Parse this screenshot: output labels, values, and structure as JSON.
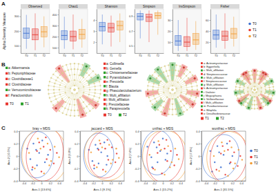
{
  "chart_data": [
    {
      "type": "box",
      "label": "A",
      "ylabel": "Alpha Diversity Measure",
      "categories": [
        "T0",
        "T1",
        "T2"
      ],
      "series": [
        {
          "name": "T0",
          "color": "#3c6fd0"
        },
        {
          "name": "T1",
          "color": "#e8352e"
        },
        {
          "name": "T2",
          "color": "#f39c32"
        }
      ],
      "facets": [
        {
          "title": "Observed",
          "ylim": [
            50,
            350
          ],
          "yticks": [
            100,
            200,
            300
          ],
          "stats": [
            [
              80,
              150,
              185,
              220,
              310
            ],
            [
              70,
              140,
              175,
              215,
              320
            ],
            [
              90,
              160,
              195,
              230,
              300
            ]
          ]
        },
        {
          "title": "Chao1",
          "ylim": [
            50,
            450
          ],
          "yticks": [
            100,
            200,
            300,
            400
          ],
          "stats": [
            [
              90,
              170,
              210,
              255,
              380
            ],
            [
              85,
              160,
              200,
              250,
              400
            ],
            [
              100,
              180,
              220,
              265,
              360
            ]
          ]
        },
        {
          "title": "Shannon",
          "ylim": [
            1,
            5
          ],
          "yticks": [
            2,
            3,
            4
          ],
          "stats": [
            [
              1.8,
              3.0,
              3.4,
              3.8,
              4.5
            ],
            [
              1.6,
              2.9,
              3.3,
              3.7,
              4.4
            ],
            [
              2.0,
              3.1,
              3.5,
              3.9,
              4.6
            ]
          ]
        },
        {
          "title": "Simpson",
          "ylim": [
            0.4,
            1
          ],
          "yticks": [
            0.5,
            0.7,
            0.9
          ],
          "stats": [
            [
              0.6,
              0.85,
              0.9,
              0.94,
              0.98
            ],
            [
              0.55,
              0.83,
              0.89,
              0.93,
              0.98
            ],
            [
              0.65,
              0.87,
              0.91,
              0.95,
              0.98
            ]
          ]
        },
        {
          "title": "InvSimpson",
          "ylim": [
            0,
            40
          ],
          "yticks": [
            10,
            20,
            30
          ],
          "stats": [
            [
              2,
              7,
              11,
              16,
              30
            ],
            [
              2,
              6,
              10,
              15,
              32
            ],
            [
              3,
              8,
              12,
              18,
              29
            ]
          ]
        },
        {
          "title": "Fisher",
          "ylim": [
            0,
            80
          ],
          "yticks": [
            20,
            40,
            60
          ],
          "stats": [
            [
              10,
              25,
              33,
              42,
              70
            ],
            [
              8,
              23,
              31,
              40,
              72
            ],
            [
              12,
              27,
              35,
              45,
              66
            ]
          ]
        }
      ]
    },
    {
      "type": "cladogram",
      "label": "B",
      "panels": [
        {
          "series": [
            {
              "name": "T0",
              "color": "#e8352e"
            },
            {
              "name": "T1",
              "color": "#2ca02c"
            }
          ],
          "clades": [
            {
              "label": "a: Akkermansia",
              "group": 1
            },
            {
              "label": "b: Peptoniphilaceae",
              "group": 0
            },
            {
              "label": "c: Clostridiaceae1",
              "group": 0
            },
            {
              "label": "d: Clostridiaceae",
              "group": 0
            },
            {
              "label": "e: Verrucomicrobiaceae",
              "group": 1
            },
            {
              "label": "f: Paraclostridium",
              "group": 0
            }
          ]
        },
        {
          "series": [
            {
              "name": "T0",
              "color": "#e8352e"
            },
            {
              "name": "T2",
              "color": "#2ca02c"
            }
          ],
          "clades": [
            {
              "label": "a: Collinsella",
              "group": 0
            },
            {
              "label": "b: Gemella",
              "group": 0
            },
            {
              "label": "c: Christensenellaceae",
              "group": 1
            },
            {
              "label": "d: Pyramidobacter",
              "group": 1
            },
            {
              "label": "e: Prevotella",
              "group": 0
            },
            {
              "label": "f: Blautia",
              "group": 1
            },
            {
              "label": "g: Phascolarctobacterium",
              "group": 0
            },
            {
              "label": "h: Multi_affiliation",
              "group": 1
            },
            {
              "label": "i: Multi_affiliation",
              "group": 0
            },
            {
              "label": "j: Prevotellaceae",
              "group": 0
            },
            {
              "label": "k: Paraprevotella",
              "group": 1
            }
          ]
        },
        {
          "series": [
            {
              "name": "T1",
              "color": "#e8352e"
            },
            {
              "name": "T2",
              "color": "#2ca02c"
            }
          ],
          "clades": [
            {
              "label": "a: Actinomycetaceae",
              "group": 0
            },
            {
              "label": "b: Eggerthella",
              "group": 0
            },
            {
              "label": "c: Multi_affiliation",
              "group": 1
            },
            {
              "label": "d: Streptococcaceae",
              "group": 0
            },
            {
              "label": "e: Multi_affiliation",
              "group": 1
            },
            {
              "label": "f: Streptococcaceae",
              "group": 0
            },
            {
              "label": "g: Multi_affiliation",
              "group": 1
            },
            {
              "label": "h: Actinomycetaceae",
              "group": 0
            },
            {
              "label": "i: Dialister",
              "group": 1
            },
            {
              "label": "j: Megasphaera",
              "group": 1
            },
            {
              "label": "k: Veillonellaceae",
              "group": 1
            },
            {
              "label": "l: Multi_affiliation",
              "group": 0
            },
            {
              "label": "m: Fusobacteriaceae",
              "group": 1
            },
            {
              "label": "n: Bilophila",
              "group": 0
            },
            {
              "label": "o: Desulfovibrionaceae",
              "group": 0
            }
          ]
        }
      ]
    },
    {
      "type": "scatter",
      "label": "C",
      "series": [
        {
          "name": "T0",
          "color": "#3c6fd0"
        },
        {
          "name": "T1",
          "color": "#e8352e"
        },
        {
          "name": "T2",
          "color": "#f39c32"
        }
      ],
      "facets": [
        {
          "title": "bray + MDS",
          "xlabel": "Axis.1 [13.6%]",
          "ylabel": "Axis.2 [10.5%]",
          "xlim": [
            -0.5,
            0.5
          ],
          "xticks": [
            -0.4,
            -0.2,
            0,
            0.2,
            0.4
          ],
          "ylim": [
            -0.4,
            0.4
          ],
          "yticks": [
            -0.4,
            -0.2,
            0,
            0.2,
            0.4
          ],
          "points": [
            {
              "x": [
                -0.32,
                -0.25,
                -0.18,
                -0.1,
                -0.05,
                0.02,
                0.08,
                -0.21,
                -0.12,
                0.15
              ],
              "y": [
                0.12,
                -0.05,
                0.2,
                -0.15,
                0.05,
                0.25,
                -0.1,
                -0.22,
                0.1,
                0.02
              ]
            },
            {
              "x": [
                -0.2,
                -0.1,
                0.0,
                0.05,
                0.12,
                0.2,
                0.28,
                -0.05,
                0.1,
                0.35
              ],
              "y": [
                -0.18,
                0.08,
                -0.25,
                0.15,
                -0.05,
                0.1,
                -0.12,
                0.22,
                0.3,
                0.05
              ]
            },
            {
              "x": [
                -0.28,
                -0.15,
                -0.02,
                0.06,
                0.14,
                0.22,
                0.3,
                -0.08,
                0.18,
                0.4
              ],
              "y": [
                0.05,
                -0.2,
                0.12,
                -0.28,
                0.2,
                -0.08,
                0.15,
                0.28,
                -0.15,
                -0.02
              ]
            }
          ]
        },
        {
          "title": "jaccard + MDS",
          "xlabel": "Axis.1 [9.1%]",
          "ylabel": "Axis.2 [6.8%]",
          "xlim": [
            -0.5,
            0.5
          ],
          "xticks": [
            -0.4,
            -0.2,
            0,
            0.2,
            0.4
          ],
          "ylim": [
            -0.4,
            0.4
          ],
          "yticks": [
            -0.4,
            -0.2,
            0,
            0.2,
            0.4
          ],
          "points": [
            {
              "x": [
                -0.3,
                -0.22,
                -0.15,
                -0.08,
                -0.02,
                0.05,
                0.1,
                -0.18,
                -0.1,
                0.12
              ],
              "y": [
                0.1,
                -0.08,
                0.18,
                -0.12,
                0.06,
                0.22,
                -0.14,
                -0.2,
                0.12,
                0.0
              ]
            },
            {
              "x": [
                -0.18,
                -0.08,
                0.02,
                0.07,
                0.14,
                0.22,
                0.3,
                -0.04,
                0.12,
                0.33
              ],
              "y": [
                -0.15,
                0.1,
                -0.22,
                0.12,
                -0.06,
                0.14,
                -0.1,
                0.2,
                0.26,
                0.04
              ]
            },
            {
              "x": [
                -0.25,
                -0.12,
                0.0,
                0.08,
                0.16,
                0.24,
                0.32,
                -0.06,
                0.2,
                0.38
              ],
              "y": [
                0.06,
                -0.18,
                0.14,
                -0.25,
                0.18,
                -0.06,
                0.12,
                0.25,
                -0.12,
                -0.03
              ]
            }
          ]
        },
        {
          "title": "unifrac + MDS",
          "xlabel": "Axis.1 [15.2%]",
          "ylabel": "Axis.2 [7.4%]",
          "xlim": [
            -0.5,
            0.5
          ],
          "xticks": [
            -0.4,
            -0.2,
            0,
            0.2,
            0.4
          ],
          "ylim": [
            -0.4,
            0.4
          ],
          "yticks": [
            -0.4,
            -0.2,
            0,
            0.2,
            0.4
          ],
          "points": [
            {
              "x": [
                -0.35,
                -0.26,
                -0.2,
                -0.12,
                -0.06,
                0.0,
                0.06,
                -0.24,
                -0.14,
                0.1
              ],
              "y": [
                0.15,
                -0.02,
                0.22,
                -0.1,
                0.08,
                0.28,
                -0.06,
                -0.18,
                0.14,
                0.04
              ]
            },
            {
              "x": [
                -0.22,
                -0.12,
                -0.02,
                0.04,
                0.1,
                0.18,
                0.26,
                -0.08,
                0.08,
                0.32
              ],
              "y": [
                -0.2,
                0.05,
                -0.28,
                0.12,
                -0.08,
                0.08,
                -0.15,
                0.18,
                0.26,
                0.02
              ]
            },
            {
              "x": [
                -0.3,
                -0.18,
                -0.04,
                0.04,
                0.12,
                0.2,
                0.28,
                -0.1,
                0.16,
                0.36
              ],
              "y": [
                0.02,
                -0.22,
                0.1,
                -0.3,
                0.16,
                -0.1,
                0.12,
                0.24,
                -0.18,
                -0.05
              ]
            }
          ]
        },
        {
          "title": "wunifrac + MDS",
          "xlabel": "Axis.1 [31.5%]",
          "ylabel": "Axis.2 [17.8%]",
          "xlim": [
            -0.5,
            0.5
          ],
          "xticks": [
            -0.4,
            -0.2,
            0,
            0.2,
            0.4
          ],
          "ylim": [
            -0.4,
            0.4
          ],
          "yticks": [
            -0.4,
            -0.2,
            0,
            0.2,
            0.4
          ],
          "points": [
            {
              "x": [
                -0.3,
                -0.2,
                -0.14,
                -0.06,
                0.0,
                0.08,
                0.14,
                -0.26,
                -0.1,
                0.2
              ],
              "y": [
                0.08,
                -0.1,
                0.16,
                -0.18,
                0.02,
                0.2,
                -0.12,
                -0.25,
                0.06,
                0.0
              ]
            },
            {
              "x": [
                -0.16,
                -0.06,
                0.04,
                0.1,
                0.16,
                0.24,
                0.32,
                -0.02,
                0.14,
                0.38
              ],
              "y": [
                -0.22,
                0.04,
                -0.3,
                0.1,
                -0.1,
                0.06,
                -0.16,
                0.16,
                0.24,
                0.0
              ]
            },
            {
              "x": [
                -0.22,
                -0.1,
                0.02,
                0.1,
                0.18,
                0.26,
                0.34,
                -0.04,
                0.22,
                0.42
              ],
              "y": [
                0.0,
                -0.24,
                0.08,
                -0.32,
                0.14,
                -0.12,
                0.1,
                0.22,
                -0.2,
                -0.06
              ]
            }
          ]
        }
      ]
    }
  ]
}
